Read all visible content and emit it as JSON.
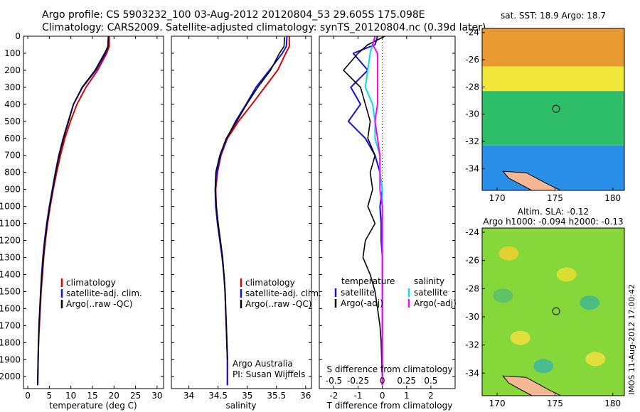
{
  "header": {
    "line1": "Argo profile: CS 5903232_100 03-Aug-2012 20120804_53 29.605S 175.098E",
    "line2": "Climatology: CARS2009. Satellite-adjusted climatology: synTS_20120804.nc (0.39d later)"
  },
  "colors": {
    "climatology": "#dd0000",
    "satellite": "#1010e0",
    "argo": "#000000",
    "satellite_salinity": "#00e0e0",
    "argo_salinity": "#ff00ff",
    "land": "#f5b895"
  },
  "chart_data": [
    {
      "id": "temperature",
      "type": "line",
      "xlabel": "temperature (deg C)",
      "ylabel": "",
      "xlim": [
        -1,
        31.5
      ],
      "ylim": [
        2070,
        0
      ],
      "xticks": [
        "0",
        "5",
        "10",
        "15",
        "20",
        "25",
        "30"
      ],
      "xtick_values": [
        0,
        5,
        10,
        15,
        20,
        25,
        30
      ],
      "yticks": [
        "0",
        "100",
        "200",
        "300",
        "400",
        "500",
        "600",
        "700",
        "800",
        "900",
        "1000",
        "1100",
        "1200",
        "1300",
        "1400",
        "1500",
        "1600",
        "1700",
        "1800",
        "1900",
        "2000"
      ],
      "ytick_values": [
        0,
        100,
        200,
        300,
        400,
        500,
        600,
        700,
        800,
        900,
        1000,
        1100,
        1200,
        1300,
        1400,
        1500,
        1600,
        1700,
        1800,
        1900,
        2000
      ],
      "legend": [
        "climatology",
        "satellite-adj. clim.",
        "Argo(..raw -QC)"
      ],
      "series": [
        {
          "name": "climatology",
          "color": "climatology",
          "x": [
            18.9,
            18.9,
            18.3,
            16.2,
            13.5,
            11.4,
            9.9,
            8.6,
            7.6,
            6.7,
            5.9,
            5.2,
            4.6,
            4.1,
            3.7,
            3.4,
            3.1,
            2.9,
            2.7,
            2.5,
            2.4,
            2.3
          ],
          "y": [
            0,
            60,
            100,
            200,
            300,
            400,
            500,
            600,
            700,
            800,
            900,
            1000,
            1100,
            1200,
            1300,
            1400,
            1500,
            1600,
            1700,
            1800,
            1900,
            2050
          ]
        },
        {
          "name": "satellite-adj. clim.",
          "color": "satellite",
          "x": [
            18.7,
            18.6,
            18.0,
            15.8,
            12.7,
            10.6,
            9.4,
            8.2,
            7.2,
            6.4,
            5.7,
            5.0,
            4.4,
            3.9,
            3.5,
            3.2,
            3.0,
            2.8,
            2.6,
            2.5,
            2.4,
            2.3
          ],
          "y": [
            0,
            60,
            100,
            200,
            300,
            400,
            500,
            600,
            700,
            800,
            900,
            1000,
            1100,
            1200,
            1300,
            1400,
            1500,
            1600,
            1700,
            1800,
            1900,
            2050
          ]
        },
        {
          "name": "Argo(..raw -QC)",
          "color": "argo",
          "x": [
            18.7,
            18.6,
            17.8,
            15.6,
            12.6,
            10.6,
            9.5,
            8.3,
            7.3,
            6.5,
            5.8,
            5.1,
            4.5,
            4.0,
            3.6,
            3.3,
            3.0,
            2.8,
            2.6,
            2.5,
            2.4,
            2.3
          ],
          "y": [
            5,
            60,
            100,
            200,
            300,
            400,
            500,
            600,
            700,
            800,
            900,
            1000,
            1100,
            1200,
            1300,
            1400,
            1500,
            1600,
            1700,
            1800,
            1900,
            2050
          ]
        }
      ]
    },
    {
      "id": "salinity",
      "type": "line",
      "xlabel": "salinity",
      "xlim": [
        33.7,
        36.1
      ],
      "ylim": [
        2070,
        0
      ],
      "xticks": [
        "34",
        "34.5",
        "35",
        "35.5",
        "36"
      ],
      "xtick_values": [
        34,
        34.5,
        35,
        35.5,
        36
      ],
      "legend": [
        "climatology",
        "satellite-adj. clim.",
        "Argo(..raw -QC)"
      ],
      "annotations": [
        "Argo Australia",
        "PI: Susan Wijffels"
      ],
      "series": [
        {
          "name": "climatology",
          "color": "climatology",
          "x": [
            35.72,
            35.72,
            35.66,
            35.52,
            35.3,
            35.08,
            34.85,
            34.66,
            34.55,
            34.49,
            34.46,
            34.47,
            34.5,
            34.54,
            34.57,
            34.6,
            34.62,
            34.63,
            34.64,
            34.65,
            34.66,
            34.66
          ],
          "y": [
            0,
            60,
            100,
            200,
            300,
            400,
            500,
            600,
            700,
            800,
            900,
            1000,
            1100,
            1200,
            1300,
            1400,
            1500,
            1600,
            1700,
            1800,
            1900,
            2050
          ]
        },
        {
          "name": "satellite-adj. clim.",
          "color": "satellite",
          "x": [
            35.68,
            35.67,
            35.6,
            35.38,
            35.15,
            34.98,
            34.8,
            34.65,
            34.54,
            34.48,
            34.45,
            34.46,
            34.49,
            34.53,
            34.57,
            34.6,
            34.62,
            34.63,
            34.64,
            34.65,
            34.66,
            34.66
          ],
          "y": [
            0,
            60,
            100,
            200,
            300,
            400,
            500,
            600,
            700,
            800,
            900,
            1000,
            1100,
            1200,
            1300,
            1400,
            1500,
            1600,
            1700,
            1800,
            1900,
            2050
          ]
        },
        {
          "name": "Argo(..raw -QC)",
          "color": "argo",
          "x": [
            35.64,
            35.63,
            35.55,
            35.4,
            35.18,
            34.99,
            34.82,
            34.64,
            34.53,
            34.46,
            34.45,
            34.47,
            34.5,
            34.54,
            34.58,
            34.6,
            34.62,
            34.63,
            34.64,
            34.65,
            34.66
          ],
          "y": [
            5,
            60,
            100,
            200,
            300,
            400,
            500,
            600,
            700,
            800,
            900,
            1000,
            1100,
            1200,
            1300,
            1400,
            1500,
            1600,
            1700,
            1800,
            1900
          ]
        }
      ]
    },
    {
      "id": "difference",
      "type": "line",
      "xlabel": "T difference from climatology",
      "xlabel_top": "S difference from climatology",
      "xlim": [
        -2.6,
        3.0
      ],
      "ylim": [
        2070,
        0
      ],
      "xticks": [
        "-2",
        "-1",
        "0",
        "1",
        "2"
      ],
      "xtick_values": [
        -2,
        -1,
        0,
        1,
        2
      ],
      "s_ticks": [
        "-0.5",
        "-0.25",
        "0",
        "0.25",
        "0.5"
      ],
      "s_tick_positions": [
        -2,
        -1,
        0,
        1,
        2
      ],
      "legend_left_title": "temperature",
      "legend_right_title": "salinity",
      "legend": [
        "satellite",
        "Argo(-adj)",
        "satellite",
        "Argo(-adj)"
      ],
      "series": [
        {
          "name": "satellite",
          "color": "satellite",
          "x": [
            -0.2,
            -0.3,
            -1.2,
            -0.6,
            -1.3,
            -0.9,
            -1.4,
            -0.7,
            -0.3,
            -0.1,
            0.0,
            -0.1,
            -0.05,
            -0.05,
            0.0,
            0.0,
            0.0,
            0.0,
            0.0,
            0.0,
            0.0
          ],
          "y": [
            0,
            50,
            100,
            200,
            300,
            400,
            500,
            600,
            700,
            800,
            900,
            1000,
            1100,
            1200,
            1300,
            1400,
            1500,
            1600,
            1700,
            1800,
            2050
          ]
        },
        {
          "name": "Argo(-adj)",
          "color": "argo",
          "x": [
            0.1,
            -0.6,
            -1.0,
            -1.6,
            -0.9,
            -0.7,
            -0.5,
            -0.6,
            -0.3,
            -0.5,
            -0.4,
            -0.6,
            -0.3,
            -0.7,
            -0.8,
            -0.5,
            -0.3,
            -0.2,
            -0.1,
            -0.05,
            0.0
          ],
          "y": [
            0,
            50,
            100,
            200,
            300,
            400,
            500,
            600,
            700,
            800,
            900,
            1000,
            1100,
            1200,
            1300,
            1400,
            1500,
            1600,
            1700,
            1800,
            2050
          ]
        },
        {
          "name": "satellite",
          "color": "satellite_salinity",
          "x": [
            -0.3,
            -0.4,
            -0.5,
            -0.6,
            -0.7,
            -0.4,
            -0.3,
            -0.3,
            -0.1,
            -0.1,
            0.0,
            0.0,
            0.0,
            0.0,
            0.0,
            0.0,
            0.0,
            0.0,
            0.0,
            0.0,
            0.0
          ],
          "y": [
            0,
            50,
            100,
            200,
            300,
            400,
            500,
            600,
            700,
            800,
            900,
            1000,
            1100,
            1200,
            1300,
            1400,
            1500,
            1600,
            1700,
            1800,
            2050
          ]
        },
        {
          "name": "Argo(-adj)",
          "color": "argo_salinity",
          "x": [
            -0.3,
            -0.4,
            -0.2,
            -0.2,
            -0.2,
            -0.2,
            -0.3,
            -0.2,
            -0.1,
            -0.1,
            -0.1,
            0.0,
            0.0,
            0.0,
            0.0,
            0.0,
            0.0,
            0.0,
            0.0,
            0.0,
            0.0
          ],
          "y": [
            0,
            50,
            100,
            200,
            300,
            400,
            500,
            600,
            700,
            800,
            900,
            1000,
            1100,
            1200,
            1300,
            1400,
            1500,
            1600,
            1700,
            1800,
            2050
          ]
        }
      ]
    },
    {
      "id": "sst_map",
      "type": "heatmap",
      "title": "sat. SST: 18.9  Argo: 18.7",
      "xlim": [
        168.7,
        181
      ],
      "ylim": [
        -35.6,
        -23.7
      ],
      "xticks": [
        "170",
        "175",
        "180"
      ],
      "xtick_values": [
        170,
        175,
        180
      ],
      "yticks": [
        "-24",
        "-26",
        "-28",
        "-30",
        "-32",
        "-34"
      ],
      "ytick_values": [
        -24,
        -26,
        -28,
        -30,
        -32,
        -34
      ],
      "float_position": [
        175.098,
        -29.605
      ],
      "bands": [
        {
          "lat_top": -23.7,
          "lat_bottom": -26.5,
          "color": "#e89a30"
        },
        {
          "lat_top": -26.5,
          "lat_bottom": -28.3,
          "color": "#f2e83a"
        },
        {
          "lat_top": -28.3,
          "lat_bottom": -32.3,
          "color": "#2fbf6a"
        },
        {
          "lat_top": -32.3,
          "lat_bottom": -35.6,
          "color": "#2a8fe8"
        }
      ]
    },
    {
      "id": "sla_map",
      "type": "heatmap",
      "title": "Altim. SLA: -0.12",
      "subtitle": "Argo h1000: -0.094  h2000: -0.13",
      "xlim": [
        168.7,
        181
      ],
      "ylim": [
        -35.6,
        -23.7
      ],
      "xticks": [
        "170",
        "175",
        "180"
      ],
      "xtick_values": [
        170,
        175,
        180
      ],
      "yticks": [
        "-24",
        "-26",
        "-28",
        "-30",
        "-32",
        "-34"
      ],
      "ytick_values": [
        -24,
        -26,
        -28,
        -30,
        -32,
        -34
      ],
      "float_position": [
        175.098,
        -29.605
      ],
      "background_color": "#86d83a",
      "side_label": "IMOS 11-Aug-2012 17:00:42"
    }
  ]
}
